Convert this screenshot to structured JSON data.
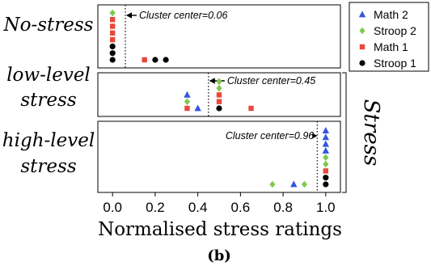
{
  "chart_data": {
    "type": "scatter",
    "caption": "(b)",
    "xlabel": "Normalised stress ratings",
    "xlim": [
      -0.05,
      1.05
    ],
    "xticks": [
      0.0,
      0.2,
      0.4,
      0.6,
      0.8,
      1.0
    ],
    "xtick_labels": [
      "0.0",
      "0.2",
      "0.4",
      "0.6",
      "0.8",
      "1.0"
    ],
    "group_bracket_label": "Stress",
    "panels": [
      {
        "name": "No-stress",
        "label_lines": [
          "No-stress"
        ],
        "cluster_center": 0.06,
        "cluster_label": "Cluster center=0.06",
        "points": [
          {
            "series": "Stroop 2",
            "x": 0.0,
            "stack": 7
          },
          {
            "series": "Math 1",
            "x": 0.0,
            "stack": 6
          },
          {
            "series": "Math 1",
            "x": 0.0,
            "stack": 5
          },
          {
            "series": "Math 1",
            "x": 0.0,
            "stack": 4
          },
          {
            "series": "Math 1",
            "x": 0.0,
            "stack": 3
          },
          {
            "series": "Stroop 1",
            "x": 0.0,
            "stack": 2
          },
          {
            "series": "Stroop 1",
            "x": 0.0,
            "stack": 1
          },
          {
            "series": "Stroop 1",
            "x": 0.0,
            "stack": 0
          },
          {
            "series": "Math 1",
            "x": 0.15,
            "stack": 0
          },
          {
            "series": "Stroop 1",
            "x": 0.2,
            "stack": 0
          },
          {
            "series": "Stroop 1",
            "x": 0.25,
            "stack": 0
          }
        ]
      },
      {
        "name": "low-level stress",
        "label_lines": [
          "low-level",
          "stress"
        ],
        "cluster_center": 0.45,
        "cluster_label": "Cluster center=0.45",
        "points": [
          {
            "series": "Math 2",
            "x": 0.35,
            "stack": 2
          },
          {
            "series": "Stroop 2",
            "x": 0.35,
            "stack": 1
          },
          {
            "series": "Math 1",
            "x": 0.35,
            "stack": 0
          },
          {
            "series": "Math 2",
            "x": 0.4,
            "stack": 0
          },
          {
            "series": "Stroop 2",
            "x": 0.5,
            "stack": 4
          },
          {
            "series": "Stroop 2",
            "x": 0.5,
            "stack": 3
          },
          {
            "series": "Math 1",
            "x": 0.5,
            "stack": 2
          },
          {
            "series": "Math 1",
            "x": 0.5,
            "stack": 1
          },
          {
            "series": "Stroop 1",
            "x": 0.5,
            "stack": 0
          },
          {
            "series": "Math 1",
            "x": 0.65,
            "stack": 0
          }
        ]
      },
      {
        "name": "high-level stress",
        "label_lines": [
          "high-level",
          "stress"
        ],
        "cluster_center": 0.96,
        "cluster_label": "Cluster center=0.96",
        "points": [
          {
            "series": "Stroop 2",
            "x": 0.75,
            "stack": 0
          },
          {
            "series": "Math 2",
            "x": 0.85,
            "stack": 0
          },
          {
            "series": "Stroop 2",
            "x": 0.9,
            "stack": 0
          },
          {
            "series": "Math 2",
            "x": 1.0,
            "stack": 8
          },
          {
            "series": "Math 2",
            "x": 1.0,
            "stack": 7
          },
          {
            "series": "Math 2",
            "x": 1.0,
            "stack": 6
          },
          {
            "series": "Math 2",
            "x": 1.0,
            "stack": 5
          },
          {
            "series": "Stroop 2",
            "x": 1.0,
            "stack": 4
          },
          {
            "series": "Stroop 2",
            "x": 1.0,
            "stack": 3
          },
          {
            "series": "Math 1",
            "x": 1.0,
            "stack": 2
          },
          {
            "series": "Stroop 1",
            "x": 1.0,
            "stack": 1
          },
          {
            "series": "Stroop 1",
            "x": 1.0,
            "stack": 0
          }
        ]
      }
    ],
    "legend": {
      "placement": "top-right",
      "entries": [
        {
          "series": "Math 2",
          "label": "Math 2",
          "marker": "triangle",
          "color": "#3355e0"
        },
        {
          "series": "Stroop 2",
          "label": "Stroop 2",
          "marker": "diamond",
          "color": "#7ec850"
        },
        {
          "series": "Math 1",
          "label": "Math 1",
          "marker": "square",
          "color": "#e8483a"
        },
        {
          "series": "Stroop 1",
          "label": "Stroop 1",
          "marker": "circle",
          "color": "#000000"
        }
      ]
    },
    "grid": false
  }
}
